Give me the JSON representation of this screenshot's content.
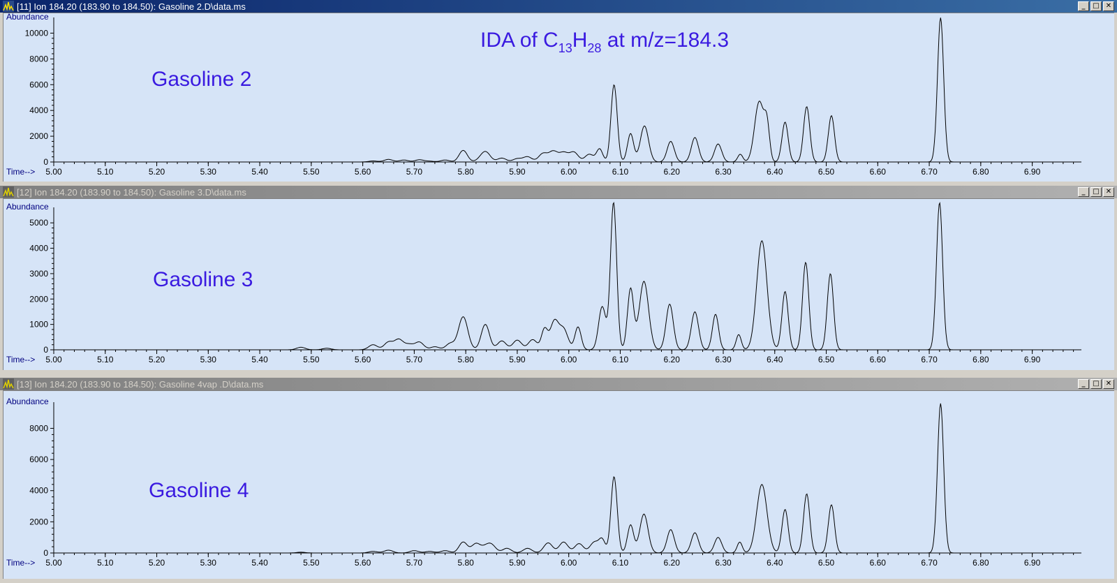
{
  "panels": [
    {
      "title": "[11] Ion 184.20 (183.90 to 184.50): Gasoline 2.D\\data.ms",
      "active": true,
      "label": "Gasoline 2",
      "annotation": {
        "pre": "IDA of C",
        "sub1": "13",
        "mid": "H",
        "sub2": "28",
        "post": " at m/z=184.3"
      }
    },
    {
      "title": "[12] Ion 184.20 (183.90 to 184.50): Gasoline 3.D\\data.ms",
      "active": false,
      "label": "Gasoline 3"
    },
    {
      "title": "[13] Ion 184.20 (183.90 to 184.50): Gasoline 4vap .D\\data.ms",
      "active": false,
      "label": "Gasoline 4"
    }
  ],
  "window_controls": {
    "minimize": "_",
    "maximize": "□",
    "close": "✕"
  },
  "chart_data": [
    {
      "type": "line",
      "ylabel": "Abundance",
      "xlabel": "Time-->",
      "xlim": [
        5.0,
        6.99
      ],
      "ylim": [
        0,
        11000
      ],
      "xticks": [
        "5.00",
        "5.10",
        "5.20",
        "5.30",
        "5.40",
        "5.50",
        "5.60",
        "5.70",
        "5.80",
        "5.90",
        "6.00",
        "6.10",
        "6.20",
        "6.30",
        "6.40",
        "6.50",
        "6.60",
        "6.70",
        "6.80",
        "6.90"
      ],
      "yticks": [
        0,
        2000,
        4000,
        6000,
        8000,
        10000
      ],
      "baseline": 0,
      "noise": [
        [
          5.62,
          80
        ],
        [
          5.65,
          200
        ],
        [
          5.68,
          150
        ],
        [
          5.71,
          170
        ],
        [
          5.73,
          60
        ],
        [
          5.76,
          150
        ],
        [
          5.84,
          400
        ],
        [
          5.87,
          300
        ],
        [
          5.9,
          250
        ],
        [
          5.92,
          400
        ],
        [
          5.95,
          650
        ],
        [
          5.97,
          800
        ],
        [
          5.99,
          700
        ],
        [
          6.01,
          750
        ],
        [
          6.04,
          600
        ]
      ],
      "peaks": [
        [
          5.795,
          900,
          0.008
        ],
        [
          5.835,
          450,
          0.01
        ],
        [
          6.06,
          1000,
          0.006
        ],
        [
          6.088,
          6000,
          0.006
        ],
        [
          6.12,
          2200,
          0.006
        ],
        [
          6.147,
          2800,
          0.008
        ],
        [
          6.198,
          1600,
          0.007
        ],
        [
          6.245,
          1900,
          0.007
        ],
        [
          6.29,
          1400,
          0.007
        ],
        [
          6.333,
          600,
          0.005
        ],
        [
          6.37,
          4700,
          0.009
        ],
        [
          6.385,
          2500,
          0.005
        ],
        [
          6.42,
          3100,
          0.006
        ],
        [
          6.462,
          4300,
          0.006
        ],
        [
          6.51,
          3600,
          0.006
        ],
        [
          6.722,
          11200,
          0.006
        ]
      ]
    },
    {
      "type": "line",
      "ylabel": "Abundance",
      "xlabel": "Time-->",
      "xlim": [
        5.0,
        6.99
      ],
      "ylim": [
        0,
        5500
      ],
      "xticks": [
        "5.00",
        "5.10",
        "5.20",
        "5.30",
        "5.40",
        "5.50",
        "5.60",
        "5.70",
        "5.80",
        "5.90",
        "6.00",
        "6.10",
        "6.20",
        "6.30",
        "6.40",
        "6.50",
        "6.60",
        "6.70",
        "6.80",
        "6.90"
      ],
      "yticks": [
        0,
        1000,
        2000,
        3000,
        4000,
        5000
      ],
      "baseline": 0,
      "noise": [
        [
          5.48,
          100
        ],
        [
          5.53,
          60
        ],
        [
          5.62,
          200
        ],
        [
          5.65,
          300
        ],
        [
          5.67,
          400
        ],
        [
          5.69,
          200
        ],
        [
          5.71,
          300
        ],
        [
          5.74,
          120
        ],
        [
          5.77,
          250
        ],
        [
          5.87,
          350
        ],
        [
          5.9,
          380
        ],
        [
          5.93,
          400
        ],
        [
          5.99,
          800
        ]
      ],
      "peaks": [
        [
          5.795,
          1300,
          0.009
        ],
        [
          5.838,
          1000,
          0.008
        ],
        [
          5.953,
          800,
          0.006
        ],
        [
          5.972,
          1100,
          0.008
        ],
        [
          6.018,
          900,
          0.006
        ],
        [
          6.065,
          1700,
          0.007
        ],
        [
          6.087,
          5800,
          0.006
        ],
        [
          6.12,
          2400,
          0.006
        ],
        [
          6.146,
          2700,
          0.009
        ],
        [
          6.196,
          1800,
          0.007
        ],
        [
          6.245,
          1500,
          0.007
        ],
        [
          6.285,
          1400,
          0.006
        ],
        [
          6.33,
          600,
          0.005
        ],
        [
          6.375,
          4300,
          0.01
        ],
        [
          6.42,
          2300,
          0.006
        ],
        [
          6.46,
          3450,
          0.006
        ],
        [
          6.508,
          3000,
          0.006
        ],
        [
          6.72,
          5800,
          0.006
        ]
      ]
    },
    {
      "type": "line",
      "ylabel": "Abundance",
      "xlabel": "Time-->",
      "xlim": [
        5.0,
        6.99
      ],
      "ylim": [
        0,
        9500
      ],
      "xticks": [
        "5.00",
        "5.10",
        "5.20",
        "5.30",
        "5.40",
        "5.50",
        "5.60",
        "5.70",
        "5.80",
        "5.90",
        "6.00",
        "6.10",
        "6.20",
        "6.30",
        "6.40",
        "6.50",
        "6.60",
        "6.70",
        "6.80",
        "6.90"
      ],
      "yticks": [
        0,
        2000,
        4000,
        6000,
        8000
      ],
      "baseline": 0,
      "noise": [
        [
          5.48,
          50
        ],
        [
          5.62,
          100
        ],
        [
          5.65,
          180
        ],
        [
          5.7,
          150
        ],
        [
          5.73,
          100
        ],
        [
          5.76,
          150
        ],
        [
          5.82,
          600
        ],
        [
          5.85,
          500
        ],
        [
          5.88,
          300
        ],
        [
          5.92,
          300
        ],
        [
          5.96,
          650
        ],
        [
          5.99,
          700
        ],
        [
          6.02,
          600
        ],
        [
          6.05,
          700
        ]
      ],
      "peaks": [
        [
          5.795,
          700,
          0.008
        ],
        [
          5.838,
          300,
          0.008
        ],
        [
          6.065,
          800,
          0.006
        ],
        [
          6.088,
          4900,
          0.006
        ],
        [
          6.12,
          1800,
          0.006
        ],
        [
          6.146,
          2500,
          0.008
        ],
        [
          6.198,
          1500,
          0.007
        ],
        [
          6.245,
          1300,
          0.007
        ],
        [
          6.29,
          1000,
          0.007
        ],
        [
          6.332,
          700,
          0.005
        ],
        [
          6.375,
          4400,
          0.01
        ],
        [
          6.42,
          2800,
          0.006
        ],
        [
          6.462,
          3800,
          0.006
        ],
        [
          6.51,
          3100,
          0.006
        ],
        [
          6.722,
          9600,
          0.006
        ]
      ]
    }
  ]
}
